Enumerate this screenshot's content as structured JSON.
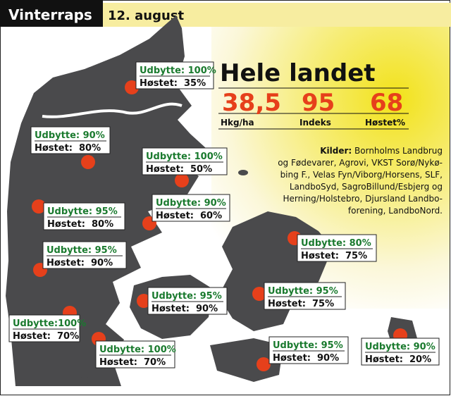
{
  "header": {
    "title": "Vinterraps",
    "date": "12. august"
  },
  "summary": {
    "title": "Hele landet",
    "stats": [
      {
        "value": "38,5",
        "label": "Hkg/ha"
      },
      {
        "value": "95",
        "label": "Indeks"
      },
      {
        "value": "68",
        "label": "Høstet%"
      }
    ]
  },
  "sources": {
    "label": "Kilder:",
    "lines": [
      "Bornholms Landbrug",
      "og Fødevarer, Agrovi, VKST Sorø/Nykø-",
      "bing F., Velas Fyn/Viborg/Horsens, SLF,",
      "LandboSyd, SagroBillund/Esbjerg og",
      "Herning/Holstebro, Djursland Landbo-",
      "forening, LandboNord."
    ]
  },
  "regions": [
    {
      "yield": "Udbytte: 100%",
      "harvest_label": "Høstet:",
      "harvest": "35%"
    },
    {
      "yield": "Udbytte: 90%",
      "harvest_label": "Høstet:",
      "harvest": "80%"
    },
    {
      "yield": "Udbytte: 100%",
      "harvest_label": "Høstet:",
      "harvest": "50%"
    },
    {
      "yield": "Udbytte: 95%",
      "harvest_label": "Høstet:",
      "harvest": "80%"
    },
    {
      "yield": "Udbytte: 90%",
      "harvest_label": "Høstet:",
      "harvest": "60%"
    },
    {
      "yield": "Udbytte: 95%",
      "harvest_label": "Høstet:",
      "harvest": "90%"
    },
    {
      "yield": "Udbytte: 80%",
      "harvest_label": "Høstet:",
      "harvest": "75%"
    },
    {
      "yield": "Udbytte: 95%",
      "harvest_label": "Høstet:",
      "harvest": "90%"
    },
    {
      "yield": "Udbytte: 95%",
      "harvest_label": "Høstet:",
      "harvest": "75%"
    },
    {
      "yield": "Udbytte:100%",
      "harvest_label": "Høstet:",
      "harvest": "70%"
    },
    {
      "yield": "Udbytte: 100%",
      "harvest_label": "Høstet:",
      "harvest": "70%"
    },
    {
      "yield": "Udbytte: 95%",
      "harvest_label": "Høstet:",
      "harvest": "90%"
    },
    {
      "yield": "Udbytte: 90%",
      "harvest_label": "Høstet:",
      "harvest": "20%"
    }
  ]
}
